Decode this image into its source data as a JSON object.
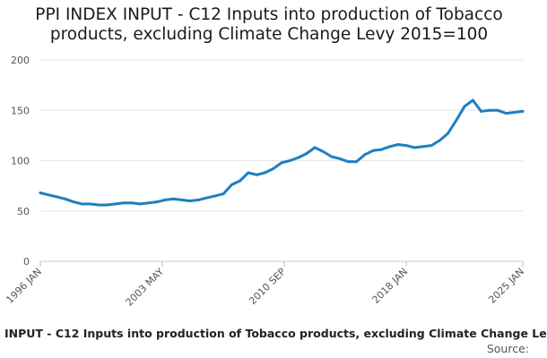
{
  "title_lines": [
    "PPI INDEX INPUT - C12 Inputs into production of Tobacco",
    "products, excluding Climate Change Levy 2015=100"
  ],
  "legend_label": "INPUT - C12 Inputs into production of Tobacco products, excluding Climate Change Le",
  "source_label": "Source:",
  "chart_data": {
    "type": "line",
    "title": "PPI INDEX INPUT - C12 Inputs into production of Tobacco products, excluding Climate Change Levy 2015=100",
    "xlabel": "",
    "ylabel": "",
    "ylim": [
      0,
      200
    ],
    "y_ticks": [
      0,
      50,
      100,
      150,
      200
    ],
    "x_tick_labels": [
      "1996 JAN",
      "2003 MAY",
      "2010 SEP",
      "2018 JAN",
      "2025 JAN"
    ],
    "x_tick_values": [
      "1996-01",
      "2003-05",
      "2010-09",
      "2018-01",
      "2025-01"
    ],
    "grid": true,
    "legend_position": "bottom",
    "color": "#1f7fbf",
    "series": [
      {
        "name": "INPUT - C12 Inputs into production of Tobacco products, excluding Climate Change Le",
        "x": [
          "1996-01",
          "1996-07",
          "1997-01",
          "1997-07",
          "1998-01",
          "1998-07",
          "1999-01",
          "1999-07",
          "2000-01",
          "2000-07",
          "2001-01",
          "2001-07",
          "2002-01",
          "2002-07",
          "2003-01",
          "2003-07",
          "2004-01",
          "2004-07",
          "2005-01",
          "2005-07",
          "2006-01",
          "2006-07",
          "2007-01",
          "2007-07",
          "2008-01",
          "2008-07",
          "2009-01",
          "2009-07",
          "2010-01",
          "2010-07",
          "2011-01",
          "2011-07",
          "2012-01",
          "2012-07",
          "2013-01",
          "2013-07",
          "2014-01",
          "2014-07",
          "2015-01",
          "2015-07",
          "2016-01",
          "2016-07",
          "2017-01",
          "2017-07",
          "2018-01",
          "2018-07",
          "2019-01",
          "2019-07",
          "2020-01",
          "2020-07",
          "2021-01",
          "2021-07",
          "2022-01",
          "2022-07",
          "2023-01",
          "2023-07",
          "2024-01",
          "2024-07",
          "2025-01"
        ],
        "values": [
          68,
          66,
          64,
          62,
          59,
          57,
          57,
          56,
          56,
          57,
          58,
          58,
          57,
          58,
          59,
          61,
          62,
          61,
          60,
          61,
          63,
          65,
          67,
          76,
          80,
          88,
          86,
          88,
          92,
          98,
          100,
          103,
          107,
          113,
          109,
          104,
          102,
          99,
          99,
          106,
          110,
          111,
          114,
          116,
          115,
          113,
          114,
          115,
          120,
          127,
          140,
          154,
          160,
          149,
          150,
          150,
          147,
          148,
          149
        ]
      }
    ]
  }
}
